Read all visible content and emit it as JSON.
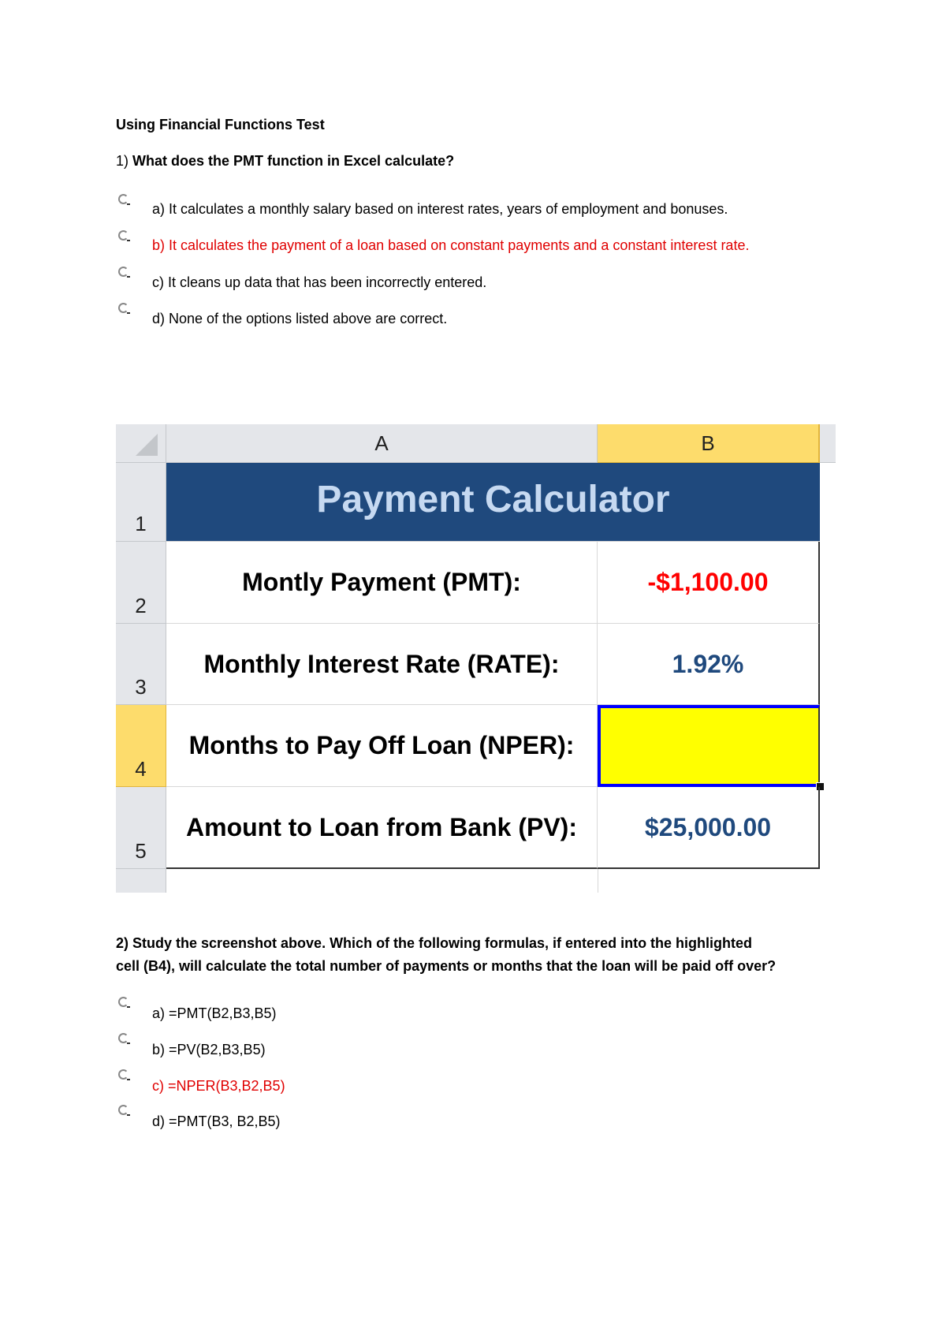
{
  "title": "Using Financial Functions Test",
  "q1": {
    "number": "1)",
    "text": "What does the PMT function in Excel calculate?",
    "options": [
      "a) It calculates a monthly salary based on interest rates, years of employment and bonuses.",
      "b) It calculates the payment of a loan based on constant payments and a constant interest rate.",
      "c) It cleans up data that has been incorrectly entered.",
      "d) None of the options listed above are correct."
    ],
    "highlighted_option": 1
  },
  "sheet": {
    "columns": [
      "A",
      "B"
    ],
    "rows": [
      "1",
      "2",
      "3",
      "4",
      "5"
    ],
    "header_title": "Payment Calculator",
    "labels": [
      "Montly Payment (PMT):",
      "Monthly Interest Rate (RATE):",
      "Months to Pay Off Loan (NPER):",
      "Amount to Loan from Bank (PV):"
    ],
    "values": [
      "-$1,100.00",
      "1.92%",
      "",
      "$25,000.00"
    ],
    "colors": {
      "header_bg": "#1f497d",
      "header_text": "#c6d9f1",
      "negative": "#ff0000",
      "value": "#1f497d",
      "highlight": "#ffff00",
      "selection_border": "#0000ff"
    }
  },
  "q2": {
    "line1": "2) Study the screenshot above.  Which of the following formulas, if entered into the highlighted",
    "line2": "cell (B4), will calculate the total number of payments or months that the loan will be paid off over?",
    "options": [
      "a) =PMT(B2,B3,B5)",
      "b) =PV(B2,B3,B5)",
      "c) =NPER(B3,B2,B5)",
      "d) =PMT(B3, B2,B5)"
    ],
    "highlighted_option": 2
  }
}
